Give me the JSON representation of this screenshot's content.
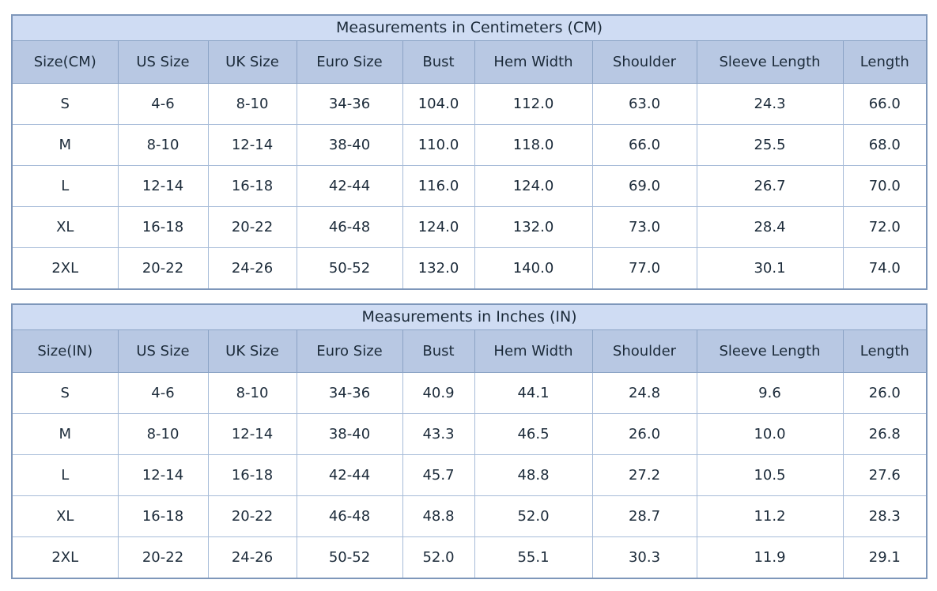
{
  "chart_data": [
    {
      "type": "table",
      "title": "Measurements in Centimeters (CM)",
      "columns": [
        "Size(CM)",
        "US Size",
        "UK Size",
        "Euro Size",
        "Bust",
        "Hem Width",
        "Shoulder",
        "Sleeve Length",
        "Length"
      ],
      "rows": [
        [
          "S",
          "4-6",
          "8-10",
          "34-36",
          "104.0",
          "112.0",
          "63.0",
          "24.3",
          "66.0"
        ],
        [
          "M",
          "8-10",
          "12-14",
          "38-40",
          "110.0",
          "118.0",
          "66.0",
          "25.5",
          "68.0"
        ],
        [
          "L",
          "12-14",
          "16-18",
          "42-44",
          "116.0",
          "124.0",
          "69.0",
          "26.7",
          "70.0"
        ],
        [
          "XL",
          "16-18",
          "20-22",
          "46-48",
          "124.0",
          "132.0",
          "73.0",
          "28.4",
          "72.0"
        ],
        [
          "2XL",
          "20-22",
          "24-26",
          "50-52",
          "132.0",
          "140.0",
          "77.0",
          "30.1",
          "74.0"
        ]
      ]
    },
    {
      "type": "table",
      "title": "Measurements in Inches (IN)",
      "columns": [
        "Size(IN)",
        "US Size",
        "UK Size",
        "Euro Size",
        "Bust",
        "Hem Width",
        "Shoulder",
        "Sleeve Length",
        "Length"
      ],
      "rows": [
        [
          "S",
          "4-6",
          "8-10",
          "34-36",
          "40.9",
          "44.1",
          "24.8",
          "9.6",
          "26.0"
        ],
        [
          "M",
          "8-10",
          "12-14",
          "38-40",
          "43.3",
          "46.5",
          "26.0",
          "10.0",
          "26.8"
        ],
        [
          "L",
          "12-14",
          "16-18",
          "42-44",
          "45.7",
          "48.8",
          "27.2",
          "10.5",
          "27.6"
        ],
        [
          "XL",
          "16-18",
          "20-22",
          "46-48",
          "48.8",
          "52.0",
          "28.7",
          "11.2",
          "28.3"
        ],
        [
          "2XL",
          "20-22",
          "24-26",
          "50-52",
          "52.0",
          "55.1",
          "30.3",
          "11.9",
          "29.1"
        ]
      ]
    }
  ],
  "colors": {
    "title_bg": "#cfdcf3",
    "header_bg": "#b8c8e3",
    "border": "#a6bbd8",
    "border_strong": "#8ba3c5",
    "outer_border": "#7e97ba",
    "text": "#1c2b3a",
    "body_bg": "#ffffff"
  }
}
